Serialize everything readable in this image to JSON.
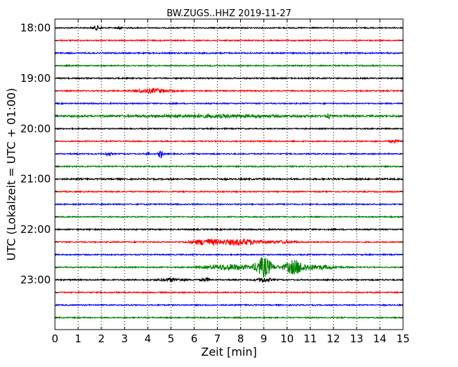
{
  "chart_data": {
    "type": "line",
    "title": "BW.ZUGS..HHZ 2019-11-27",
    "xlabel": "Zeit  [min]",
    "ylabel": "UTC (Lokalzeit = UTC + 01:00)",
    "xlim": [
      0,
      15
    ],
    "x_ticks": [
      "0",
      "1",
      "2",
      "3",
      "4",
      "5",
      "6",
      "7",
      "8",
      "9",
      "10",
      "11",
      "12",
      "13",
      "14",
      "15"
    ],
    "y_tick_labels": [
      "18:00",
      "19:00",
      "20:00",
      "21:00",
      "22:00",
      "23:00"
    ],
    "grid": "vertical-dotted",
    "colors": [
      "#000000",
      "#ff0000",
      "#0000ff",
      "#008000"
    ],
    "series": [
      {
        "start": "18:00",
        "color": "#000000",
        "amplitude": 1.0,
        "events": [
          {
            "t": 1.8,
            "a": 3,
            "d": 0.3
          },
          {
            "t": 2.8,
            "a": 3,
            "d": 0.1
          }
        ]
      },
      {
        "start": "18:15",
        "color": "#ff0000",
        "amplitude": 1.0,
        "events": []
      },
      {
        "start": "18:30",
        "color": "#0000ff",
        "amplitude": 1.1,
        "events": []
      },
      {
        "start": "18:45",
        "color": "#008000",
        "amplitude": 1.0,
        "events": []
      },
      {
        "start": "19:00",
        "color": "#000000",
        "amplitude": 1.1,
        "events": []
      },
      {
        "start": "19:15",
        "color": "#ff0000",
        "amplitude": 1.0,
        "events": [
          {
            "t": 4.2,
            "a": 3,
            "d": 1.2
          }
        ]
      },
      {
        "start": "19:30",
        "color": "#0000ff",
        "amplitude": 1.0,
        "events": []
      },
      {
        "start": "19:45",
        "color": "#008000",
        "amplitude": 1.6,
        "events": [
          {
            "t": 7.0,
            "a": 1.5,
            "d": 4.5
          },
          {
            "t": 11.8,
            "a": 3,
            "d": 0.1
          }
        ]
      },
      {
        "start": "20:00",
        "color": "#000000",
        "amplitude": 1.0,
        "events": []
      },
      {
        "start": "20:15",
        "color": "#ff0000",
        "amplitude": 1.0,
        "events": [
          {
            "t": 14.6,
            "a": 1.5,
            "d": 0.4
          }
        ]
      },
      {
        "start": "20:30",
        "color": "#0000ff",
        "amplitude": 1.0,
        "events": [
          {
            "t": 2.3,
            "a": 2.5,
            "d": 0.2
          },
          {
            "t": 4.0,
            "a": 2.5,
            "d": 0.1
          },
          {
            "t": 4.55,
            "a": 6,
            "d": 0.15
          }
        ]
      },
      {
        "start": "20:45",
        "color": "#008000",
        "amplitude": 1.1,
        "events": []
      },
      {
        "start": "21:00",
        "color": "#000000",
        "amplitude": 1.3,
        "events": []
      },
      {
        "start": "21:15",
        "color": "#ff0000",
        "amplitude": 1.0,
        "events": []
      },
      {
        "start": "21:30",
        "color": "#0000ff",
        "amplitude": 1.0,
        "events": []
      },
      {
        "start": "21:45",
        "color": "#008000",
        "amplitude": 1.0,
        "events": []
      },
      {
        "start": "22:00",
        "color": "#000000",
        "amplitude": 1.1,
        "events": []
      },
      {
        "start": "22:15",
        "color": "#ff0000",
        "amplitude": 1.0,
        "events": [
          {
            "t": 6.5,
            "a": 4,
            "d": 1.0
          },
          {
            "t": 8.0,
            "a": 4,
            "d": 1.5
          },
          {
            "t": 9.8,
            "a": 1.5,
            "d": 1.0
          }
        ]
      },
      {
        "start": "22:30",
        "color": "#0000ff",
        "amplitude": 1.0,
        "events": []
      },
      {
        "start": "22:45",
        "color": "#008000",
        "amplitude": 1.0,
        "events": [
          {
            "t": 7.5,
            "a": 4,
            "d": 1.5
          },
          {
            "t": 9.0,
            "a": 14,
            "d": 0.6
          },
          {
            "t": 10.3,
            "a": 9,
            "d": 0.7
          },
          {
            "t": 11.2,
            "a": 3,
            "d": 1.5
          }
        ]
      },
      {
        "start": "23:00",
        "color": "#000000",
        "amplitude": 1.1,
        "events": [
          {
            "t": 5.0,
            "a": 2,
            "d": 0.8
          },
          {
            "t": 6.5,
            "a": 2.5,
            "d": 0.3
          },
          {
            "t": 9.0,
            "a": 3,
            "d": 0.5
          }
        ]
      },
      {
        "start": "23:15",
        "color": "#ff0000",
        "amplitude": 1.0,
        "events": []
      },
      {
        "start": "23:30",
        "color": "#0000ff",
        "amplitude": 1.0,
        "events": []
      },
      {
        "start": "23:45",
        "color": "#008000",
        "amplitude": 1.0,
        "events": []
      }
    ]
  }
}
